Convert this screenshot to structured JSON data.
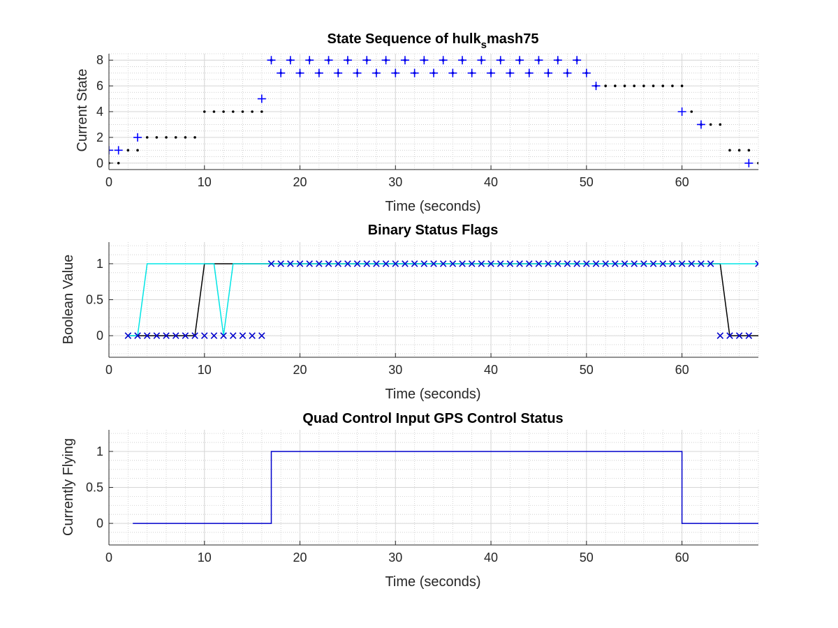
{
  "chart_data": [
    {
      "type": "scatter",
      "title_main": "State Sequence of hulk",
      "title_sub": "s",
      "title_rest": "mash75",
      "xlabel": "Time (seconds)",
      "ylabel": "Current State",
      "xlim": [
        0,
        68
      ],
      "ylim": [
        -0.5,
        8.5
      ],
      "xticks": [
        0,
        10,
        20,
        30,
        40,
        50,
        60
      ],
      "yticks": [
        0,
        2,
        4,
        6,
        8
      ],
      "grid": true,
      "minor_grid": true,
      "series": [
        {
          "marker": "dot",
          "color": "#000000",
          "x": [
            0,
            1,
            2,
            3,
            4,
            5,
            6,
            7,
            8,
            9,
            10,
            11,
            12,
            13,
            14,
            15,
            16,
            17,
            18,
            19,
            20,
            21,
            22,
            23,
            24,
            25,
            26,
            27,
            28,
            29,
            30,
            31,
            32,
            33,
            34,
            35,
            36,
            37,
            38,
            39,
            40,
            41,
            42,
            43,
            44,
            45,
            46,
            47,
            48,
            49,
            50,
            51,
            52,
            53,
            54,
            55,
            56,
            57,
            58,
            59,
            60,
            61,
            62,
            63,
            64,
            65,
            66,
            67,
            68
          ],
          "y": [
            0,
            0,
            1,
            1,
            2,
            2,
            2,
            2,
            2,
            2,
            4,
            4,
            4,
            4,
            4,
            4,
            4,
            8,
            7,
            8,
            7,
            8,
            7,
            8,
            7,
            8,
            7,
            8,
            7,
            8,
            7,
            8,
            7,
            8,
            7,
            8,
            7,
            8,
            7,
            8,
            7,
            8,
            7,
            8,
            7,
            8,
            7,
            8,
            7,
            8,
            7,
            6,
            6,
            6,
            6,
            6,
            6,
            6,
            6,
            6,
            6,
            4,
            3,
            3,
            3,
            1,
            1,
            1,
            0
          ]
        },
        {
          "marker": "plus",
          "color": "#0000ff",
          "x": [
            0,
            1,
            3,
            16,
            17,
            18,
            19,
            20,
            21,
            22,
            23,
            24,
            25,
            26,
            27,
            28,
            29,
            30,
            31,
            32,
            33,
            34,
            35,
            36,
            37,
            38,
            39,
            40,
            41,
            42,
            43,
            44,
            45,
            46,
            47,
            48,
            49,
            50,
            51,
            60,
            62,
            67
          ],
          "y": [
            1,
            1,
            2,
            5,
            8,
            7,
            8,
            7,
            8,
            7,
            8,
            7,
            8,
            7,
            8,
            7,
            8,
            7,
            8,
            7,
            8,
            7,
            8,
            7,
            8,
            7,
            8,
            7,
            8,
            7,
            8,
            7,
            8,
            7,
            8,
            7,
            8,
            7,
            6,
            4,
            3,
            0
          ]
        }
      ]
    },
    {
      "type": "line",
      "title": "Binary Status Flags",
      "xlabel": "Time (seconds)",
      "ylabel": "Boolean Value",
      "xlim": [
        0,
        68
      ],
      "ylim": [
        -0.3,
        1.3
      ],
      "xticks": [
        0,
        10,
        20,
        30,
        40,
        50,
        60
      ],
      "yticks": [
        0,
        0.5,
        1
      ],
      "grid": true,
      "minor_grid": true,
      "series": [
        {
          "style": "line",
          "color": "#000000",
          "x": [
            2,
            9,
            10,
            11,
            64,
            65,
            68
          ],
          "y": [
            0,
            0,
            1,
            1,
            1,
            0,
            0
          ]
        },
        {
          "style": "line",
          "color": "#00e5e5",
          "x": [
            2,
            3,
            4,
            11,
            12,
            13,
            68
          ],
          "y": [
            0,
            0,
            1,
            1,
            0,
            1,
            1
          ]
        },
        {
          "style": "x",
          "color": "#0000cc",
          "x": [
            2,
            3,
            4,
            5,
            6,
            7,
            8,
            9,
            10,
            11,
            12,
            13,
            14,
            15,
            16,
            17,
            18,
            19,
            20,
            21,
            22,
            23,
            24,
            25,
            26,
            27,
            28,
            29,
            30,
            31,
            32,
            33,
            34,
            35,
            36,
            37,
            38,
            39,
            40,
            41,
            42,
            43,
            44,
            45,
            46,
            47,
            48,
            49,
            50,
            51,
            52,
            53,
            54,
            55,
            56,
            57,
            58,
            59,
            60,
            61,
            62,
            63,
            64,
            65,
            66,
            67,
            68
          ],
          "y": [
            0,
            0,
            0,
            0,
            0,
            0,
            0,
            0,
            0,
            0,
            0,
            0,
            0,
            0,
            0,
            1,
            1,
            1,
            1,
            1,
            1,
            1,
            1,
            1,
            1,
            1,
            1,
            1,
            1,
            1,
            1,
            1,
            1,
            1,
            1,
            1,
            1,
            1,
            1,
            1,
            1,
            1,
            1,
            1,
            1,
            1,
            1,
            1,
            1,
            1,
            1,
            1,
            1,
            1,
            1,
            1,
            1,
            1,
            1,
            1,
            1,
            1,
            0,
            0,
            0,
            0,
            1
          ]
        }
      ]
    },
    {
      "type": "line",
      "title": "Quad Control Input GPS Control Status",
      "xlabel": "Time (seconds)",
      "ylabel": "Currently Flying",
      "xlim": [
        0,
        68
      ],
      "ylim": [
        -0.3,
        1.3
      ],
      "xticks": [
        0,
        10,
        20,
        30,
        40,
        50,
        60
      ],
      "yticks": [
        0,
        0.5,
        1
      ],
      "grid": true,
      "minor_grid": true,
      "series": [
        {
          "style": "line",
          "color": "#0000cc",
          "x": [
            2.5,
            17,
            17,
            60,
            60,
            68
          ],
          "y": [
            0,
            0,
            1,
            1,
            0,
            0
          ]
        }
      ]
    }
  ]
}
